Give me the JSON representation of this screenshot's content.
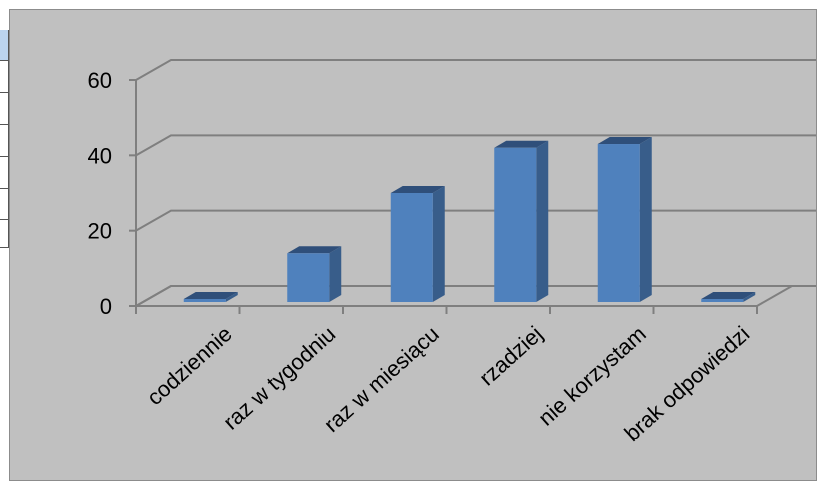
{
  "chart_data": {
    "type": "bar",
    "style": "3d-column",
    "categories": [
      "codziennie",
      "raz w tygodniu",
      "raz w miesiącu",
      "rzadziej",
      "nie korzystam",
      "brak odpowiedzi"
    ],
    "values": [
      0,
      14,
      30,
      42,
      43,
      1
    ],
    "ylim": [
      0,
      60
    ],
    "yticks": [
      0,
      20,
      40,
      60
    ],
    "grid": true,
    "legend": "none",
    "colors": {
      "bar_front": "#4f81bd",
      "bar_side": "#385d8a",
      "bar_top": "#2f4f7a",
      "background": "#c0c0c0",
      "axis": "#7f7f7f"
    }
  }
}
